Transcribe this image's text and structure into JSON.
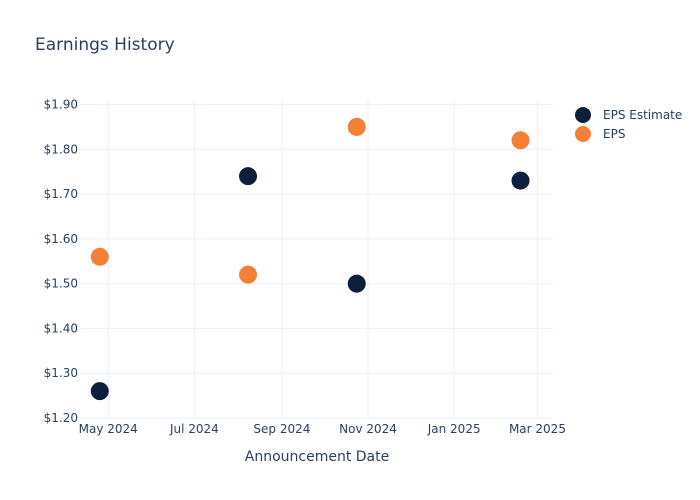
{
  "chart_data": {
    "type": "scatter",
    "title": "Earnings History",
    "xlabel": "Announcement Date",
    "ylabel": "",
    "x_ticks": [
      {
        "date": "2024-05-01",
        "label": "May 2024"
      },
      {
        "date": "2024-07-01",
        "label": "Jul 2024"
      },
      {
        "date": "2024-09-01",
        "label": "Sep 2024"
      },
      {
        "date": "2024-11-01",
        "label": "Nov 2024"
      },
      {
        "date": "2025-01-01",
        "label": "Jan 2025"
      },
      {
        "date": "2025-03-01",
        "label": "Mar 2025"
      }
    ],
    "xlim": [
      "2024-04-11",
      "2025-03-12"
    ],
    "y_ticks": [
      {
        "value": 1.2,
        "label": "$1.20"
      },
      {
        "value": 1.3,
        "label": "$1.30"
      },
      {
        "value": 1.4,
        "label": "$1.40"
      },
      {
        "value": 1.5,
        "label": "$1.50"
      },
      {
        "value": 1.6,
        "label": "$1.60"
      },
      {
        "value": 1.7,
        "label": "$1.70"
      },
      {
        "value": 1.8,
        "label": "$1.80"
      },
      {
        "value": 1.9,
        "label": "$1.90"
      }
    ],
    "ylim": [
      1.2,
      1.91
    ],
    "grid": true,
    "legend_position": "top-right",
    "series": [
      {
        "name": "EPS Estimate",
        "color": "#0d1f3d",
        "points": [
          {
            "x": "2024-04-25",
            "y": 1.26
          },
          {
            "x": "2024-08-08",
            "y": 1.74
          },
          {
            "x": "2024-10-24",
            "y": 1.5
          },
          {
            "x": "2025-02-17",
            "y": 1.73
          }
        ]
      },
      {
        "name": "EPS",
        "color": "#f47f35",
        "points": [
          {
            "x": "2024-04-25",
            "y": 1.56
          },
          {
            "x": "2024-08-08",
            "y": 1.52
          },
          {
            "x": "2024-10-24",
            "y": 1.85
          },
          {
            "x": "2025-02-17",
            "y": 1.82
          }
        ]
      }
    ]
  }
}
